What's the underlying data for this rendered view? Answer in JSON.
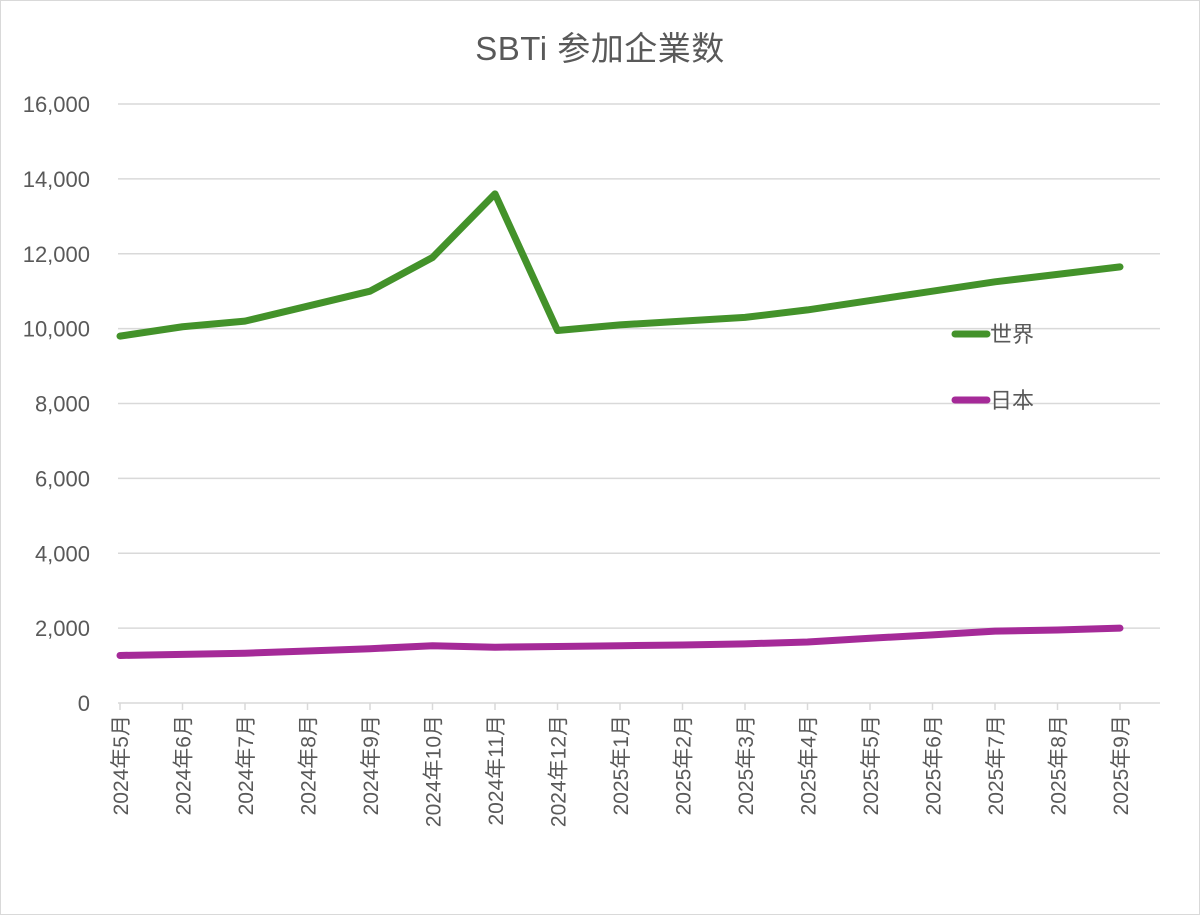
{
  "chart_data": {
    "type": "line",
    "title": "SBTi 参加企業数",
    "xlabel": "",
    "ylabel": "",
    "ylim": [
      0,
      16000
    ],
    "yticks": [
      0,
      2000,
      4000,
      6000,
      8000,
      10000,
      12000,
      14000,
      16000
    ],
    "ytick_labels": [
      "0",
      "2,000",
      "4,000",
      "6,000",
      "8,000",
      "10,000",
      "12,000",
      "14,000",
      "16,000"
    ],
    "grid": true,
    "legend_position": "right-inside",
    "categories": [
      "2024年5月",
      "2024年6月",
      "2024年7月",
      "2024年8月",
      "2024年9月",
      "2024年10月",
      "2024年11月",
      "2024年12月",
      "2025年1月",
      "2025年2月",
      "2025年3月",
      "2025年4月",
      "2025年5月",
      "2025年6月",
      "2025年7月",
      "2025年8月",
      "2025年9月"
    ],
    "series": [
      {
        "name": "世界",
        "color": "#43922a",
        "values": [
          9800,
          10050,
          10200,
          10600,
          11000,
          11900,
          13600,
          9950,
          10100,
          10200,
          10300,
          10500,
          10750,
          11000,
          11250,
          11450,
          11650
        ]
      },
      {
        "name": "日本",
        "color": "#a52a98",
        "values": [
          1270,
          1300,
          1330,
          1390,
          1450,
          1530,
          1490,
          1510,
          1530,
          1550,
          1580,
          1630,
          1730,
          1820,
          1920,
          1950,
          2000
        ]
      }
    ]
  },
  "colors": {
    "gridline": "#d9d9d9",
    "text": "#595959",
    "border": "#d9d9d9"
  }
}
